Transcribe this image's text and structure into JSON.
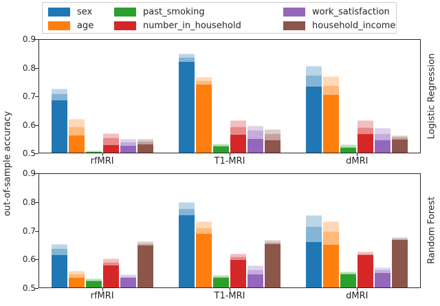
{
  "y_axis": {
    "label": "out-of-sample accuracy",
    "ticks": [
      "0.9",
      "0.8",
      "0.7",
      "0.6",
      "0.5"
    ],
    "min": 0.5,
    "max": 0.9
  },
  "x_categories": [
    "rfMRI",
    "T1-MRI",
    "dMRI"
  ],
  "legend": {
    "entries": [
      {
        "label": "sex",
        "color": "#1f77b4"
      },
      {
        "label": "age",
        "color": "#ff7f0e"
      },
      {
        "label": "past_smoking",
        "color": "#2ca02c"
      },
      {
        "label": "number_in_household",
        "color": "#d62728"
      },
      {
        "label": "work_satisfaction",
        "color": "#9467bd"
      },
      {
        "label": "household_income",
        "color": "#8c564b"
      }
    ]
  },
  "chart_data": [
    {
      "type": "bar",
      "row_label": "Logistic Regression",
      "categories": [
        "rfMRI",
        "T1-MRI",
        "dMRI"
      ],
      "ylim": [
        0.5,
        0.9
      ],
      "legend_position": "top",
      "grid": false,
      "bar_value_layers": [
        "solid_top",
        "mid_top",
        "max_top"
      ],
      "series": [
        {
          "name": "sex",
          "bars": [
            [
              0.685,
              0.71,
              0.726
            ],
            [
              0.823,
              0.838,
              0.851
            ],
            [
              0.735,
              0.775,
              0.807
            ]
          ]
        },
        {
          "name": "age",
          "bars": [
            [
              0.56,
              0.592,
              0.62
            ],
            [
              0.742,
              0.757,
              0.769
            ],
            [
              0.705,
              0.74,
              0.77
            ]
          ]
        },
        {
          "name": "past_smoking",
          "bars": [
            [
              0.502,
              0.504,
              0.507
            ],
            [
              0.522,
              0.527,
              0.532
            ],
            [
              0.516,
              0.523,
              0.53
            ]
          ]
        },
        {
          "name": "number_in_household",
          "bars": [
            [
              0.527,
              0.553,
              0.568
            ],
            [
              0.564,
              0.592,
              0.614
            ],
            [
              0.565,
              0.59,
              0.615
            ]
          ]
        },
        {
          "name": "work_satisfaction",
          "bars": [
            [
              0.525,
              0.538,
              0.548
            ],
            [
              0.548,
              0.58,
              0.596
            ],
            [
              0.545,
              0.568,
              0.587
            ]
          ]
        },
        {
          "name": "household_income",
          "bars": [
            [
              0.53,
              0.541,
              0.549
            ],
            [
              0.545,
              0.568,
              0.584
            ],
            [
              0.547,
              0.555,
              0.562
            ]
          ]
        }
      ]
    },
    {
      "type": "bar",
      "row_label": "Random Forest",
      "categories": [
        "rfMRI",
        "T1-MRI",
        "dMRI"
      ],
      "ylim": [
        0.5,
        0.9
      ],
      "grid": false,
      "bar_value_layers": [
        "solid_top",
        "mid_top",
        "max_top"
      ],
      "series": [
        {
          "name": "sex",
          "bars": [
            [
              0.613,
              0.638,
              0.653
            ],
            [
              0.754,
              0.778,
              0.8
            ],
            [
              0.66,
              0.715,
              0.754
            ]
          ]
        },
        {
          "name": "age",
          "bars": [
            [
              0.534,
              0.548,
              0.558
            ],
            [
              0.69,
              0.712,
              0.733
            ],
            [
              0.65,
              0.7,
              0.733
            ]
          ]
        },
        {
          "name": "past_smoking",
          "bars": [
            [
              0.521,
              0.526,
              0.531
            ],
            [
              0.535,
              0.539,
              0.543
            ],
            [
              0.545,
              0.55,
              0.555
            ]
          ]
        },
        {
          "name": "number_in_household",
          "bars": [
            [
              0.578,
              0.59,
              0.602
            ],
            [
              0.598,
              0.609,
              0.619
            ],
            [
              0.613,
              0.62,
              0.626
            ]
          ]
        },
        {
          "name": "work_satisfaction",
          "bars": [
            [
              0.534,
              0.54,
              0.545
            ],
            [
              0.546,
              0.562,
              0.578
            ],
            [
              0.552,
              0.562,
              0.571
            ]
          ]
        },
        {
          "name": "household_income",
          "bars": [
            [
              0.648,
              0.656,
              0.662
            ],
            [
              0.653,
              0.661,
              0.668
            ],
            [
              0.667,
              0.672,
              0.677
            ]
          ]
        }
      ]
    }
  ]
}
